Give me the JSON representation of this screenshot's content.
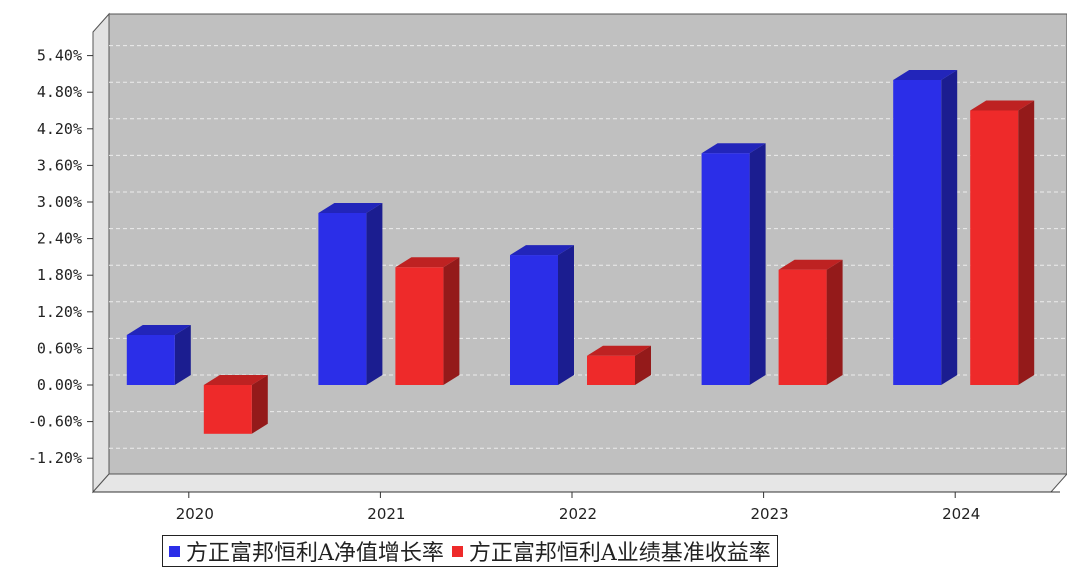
{
  "chart_data": {
    "type": "bar",
    "categories": [
      "2020",
      "2021",
      "2022",
      "2023",
      "2024"
    ],
    "series": [
      {
        "name": "方正富邦恒利A净值增长率",
        "values": [
          0.82,
          2.82,
          2.13,
          3.8,
          5.0
        ],
        "color": "#2b2ee8"
      },
      {
        "name": "方正富邦恒利A业绩基准收益率",
        "values": [
          -0.8,
          1.93,
          0.48,
          1.89,
          4.5
        ],
        "color": "#ee2a2a"
      }
    ],
    "yticks": [
      "5.40%",
      "4.80%",
      "4.20%",
      "3.60%",
      "3.00%",
      "2.40%",
      "1.80%",
      "1.20%",
      "0.60%",
      "0.00%",
      "-0.60%",
      "-1.20%"
    ],
    "ylim": [
      -1.5,
      5.7
    ],
    "grid": true,
    "legend": "bottom"
  }
}
